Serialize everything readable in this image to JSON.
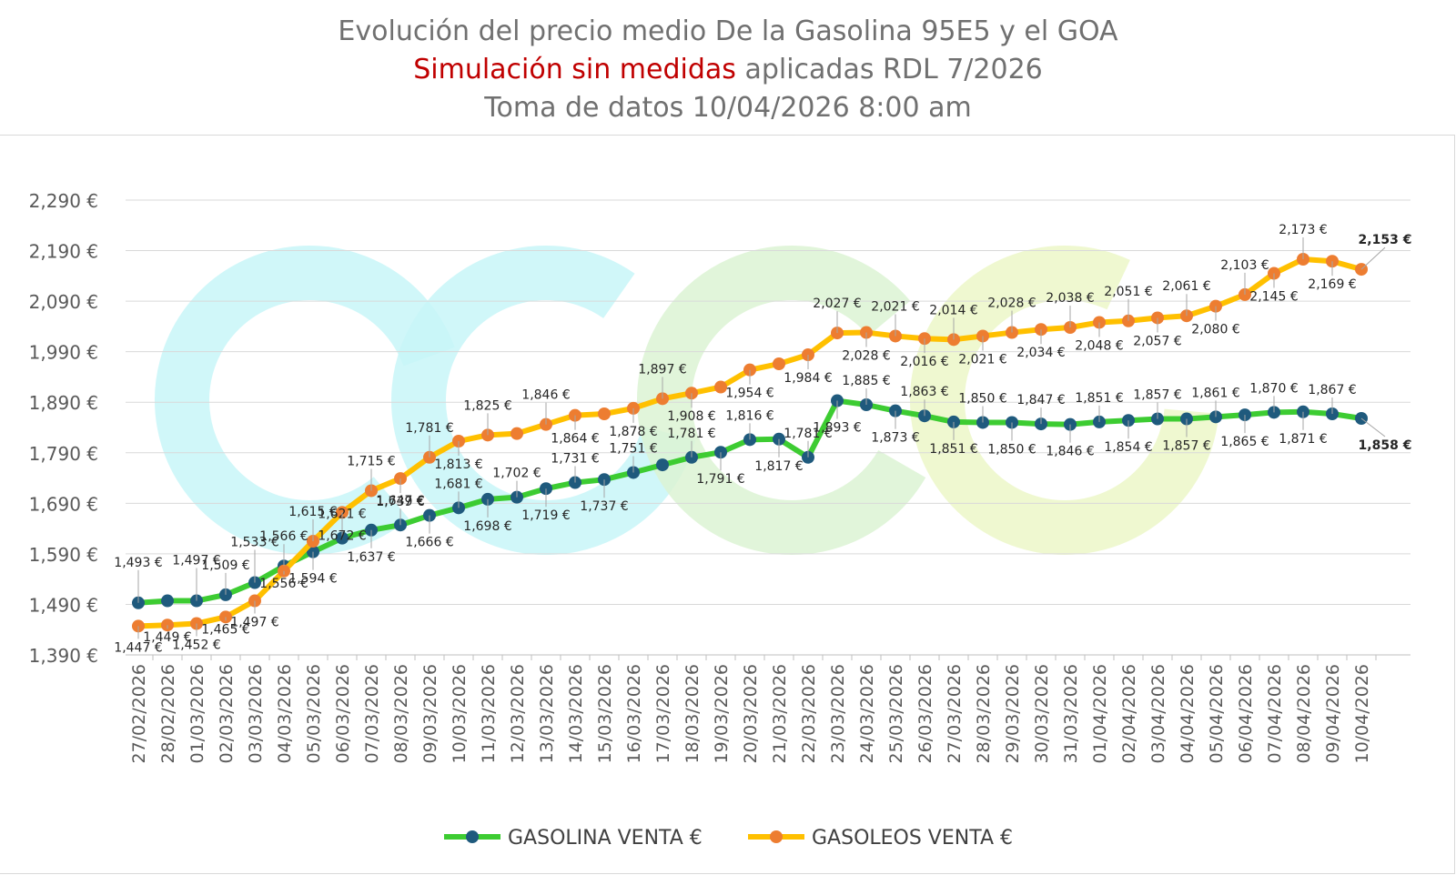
{
  "title": {
    "line1": "Evolución del precio medio De la Gasolina 95E5 y el GOA",
    "line2_highlight": "Simulación sin medidas",
    "line2_rest": " aplicadas RDL 7/2026",
    "line3": "Toma de datos 10/04/2026 8:00 am"
  },
  "colors": {
    "gasolina_line": "#3dcc32",
    "gasolina_marker": "#1f5a7d",
    "gasoleos_line": "#ffc000",
    "gasoleos_marker": "#ed7d31",
    "accent_title": "#c00000",
    "grid": "#d9d9d9",
    "watermark_cyan": "#c8f6f8",
    "watermark_green": "#dcf3d4",
    "watermark_lime": "#ecf7c8"
  },
  "chart_data": {
    "type": "line",
    "grid": true,
    "legend_position": "bottom",
    "ylim": [
      1.39,
      2.29
    ],
    "yticks": [
      "1,390 €",
      "1,490 €",
      "1,590 €",
      "1,690 €",
      "1,790 €",
      "1,890 €",
      "1,990 €",
      "2,090 €",
      "2,190 €",
      "2,290 €"
    ],
    "categories": [
      "27/02/2026",
      "28/02/2026",
      "01/03/2026",
      "02/03/2026",
      "03/03/2026",
      "04/03/2026",
      "05/03/2026",
      "06/03/2026",
      "07/03/2026",
      "08/03/2026",
      "09/03/2026",
      "10/03/2026",
      "11/03/2026",
      "12/03/2026",
      "13/03/2026",
      "14/03/2026",
      "15/03/2026",
      "16/03/2026",
      "17/03/2026",
      "18/03/2026",
      "19/03/2026",
      "20/03/2026",
      "21/03/2026",
      "22/03/2026",
      "23/03/2026",
      "24/03/2026",
      "25/03/2026",
      "26/03/2026",
      "27/03/2026",
      "28/03/2026",
      "29/03/2026",
      "30/03/2026",
      "31/03/2026",
      "01/04/2026",
      "02/04/2026",
      "03/04/2026",
      "04/04/2026",
      "05/04/2026",
      "06/04/2026",
      "07/04/2026",
      "08/04/2026",
      "09/04/2026",
      "10/04/2026"
    ],
    "series": [
      {
        "name": "GASOLINA VENTA €",
        "values": [
          1.493,
          1.497,
          1.497,
          1.509,
          1.533,
          1.566,
          1.594,
          1.621,
          1.637,
          1.647,
          1.666,
          1.681,
          1.698,
          1.702,
          1.719,
          1.731,
          1.737,
          1.751,
          1.766,
          1.781,
          1.791,
          1.816,
          1.817,
          1.781,
          1.893,
          1.885,
          1.873,
          1.863,
          1.851,
          1.85,
          1.85,
          1.847,
          1.846,
          1.851,
          1.854,
          1.857,
          1.857,
          1.861,
          1.865,
          1.87,
          1.871,
          1.867,
          1.858
        ],
        "labels": [
          "1,493 €",
          "",
          "1,497 €",
          "1,509 €",
          "1,533 €",
          "1,566 €",
          "1,594 €",
          "1,621 €",
          "1,637 €",
          "1,647 €",
          "1,666 €",
          "1,681 €",
          "1,698 €",
          "1,702 €",
          "1,719 €",
          "1,731 €",
          "1,737 €",
          "1,751 €",
          "",
          "1,781 €",
          "1,791 €",
          "1,816 €",
          "1,817 €",
          "1,781 €",
          "1,893 €",
          "1,885 €",
          "1,873 €",
          "1,863 €",
          "1,851 €",
          "1,850 €",
          "1,850 €",
          "1,847 €",
          "1,846 €",
          "1,851 €",
          "1,854 €",
          "1,857 €",
          "1,857 €",
          "1,861 €",
          "1,865 €",
          "1,870 €",
          "1,871 €",
          "1,867 €",
          "1,858 €"
        ]
      },
      {
        "name": "GASOLEOS  VENTA €",
        "values": [
          1.447,
          1.449,
          1.452,
          1.465,
          1.497,
          1.556,
          1.615,
          1.672,
          1.715,
          1.739,
          1.781,
          1.813,
          1.825,
          1.828,
          1.846,
          1.864,
          1.867,
          1.878,
          1.897,
          1.908,
          1.92,
          1.954,
          1.966,
          1.984,
          2.027,
          2.028,
          2.021,
          2.016,
          2.014,
          2.021,
          2.028,
          2.034,
          2.038,
          2.048,
          2.051,
          2.057,
          2.061,
          2.08,
          2.103,
          2.145,
          2.173,
          2.169,
          2.153
        ],
        "labels": [
          "1,447 €",
          "1,449 €",
          "1,452 €",
          "1,465 €",
          "1,497 €",
          "1,556 €",
          "1,615 €",
          "1,672 €",
          "1,715 €",
          "1,739 €",
          "1,781 €",
          "1,813 €",
          "1,825 €",
          "",
          "1,846 €",
          "1,864 €",
          "",
          "1,878 €",
          "1,897 €",
          "1,908 €",
          "",
          "1,954 €",
          "",
          "1,984 €",
          "2,027 €",
          "2,028 €",
          "2,021 €",
          "2,016 €",
          "2,014 €",
          "2,021 €",
          "2,028 €",
          "2,034 €",
          "2,038 €",
          "2,048 €",
          "2,051 €",
          "2,057 €",
          "2,061 €",
          "2,080 €",
          "2,103 €",
          "2,145 €",
          "2,173 €",
          "2,169 €",
          "2,153 €"
        ]
      }
    ]
  }
}
